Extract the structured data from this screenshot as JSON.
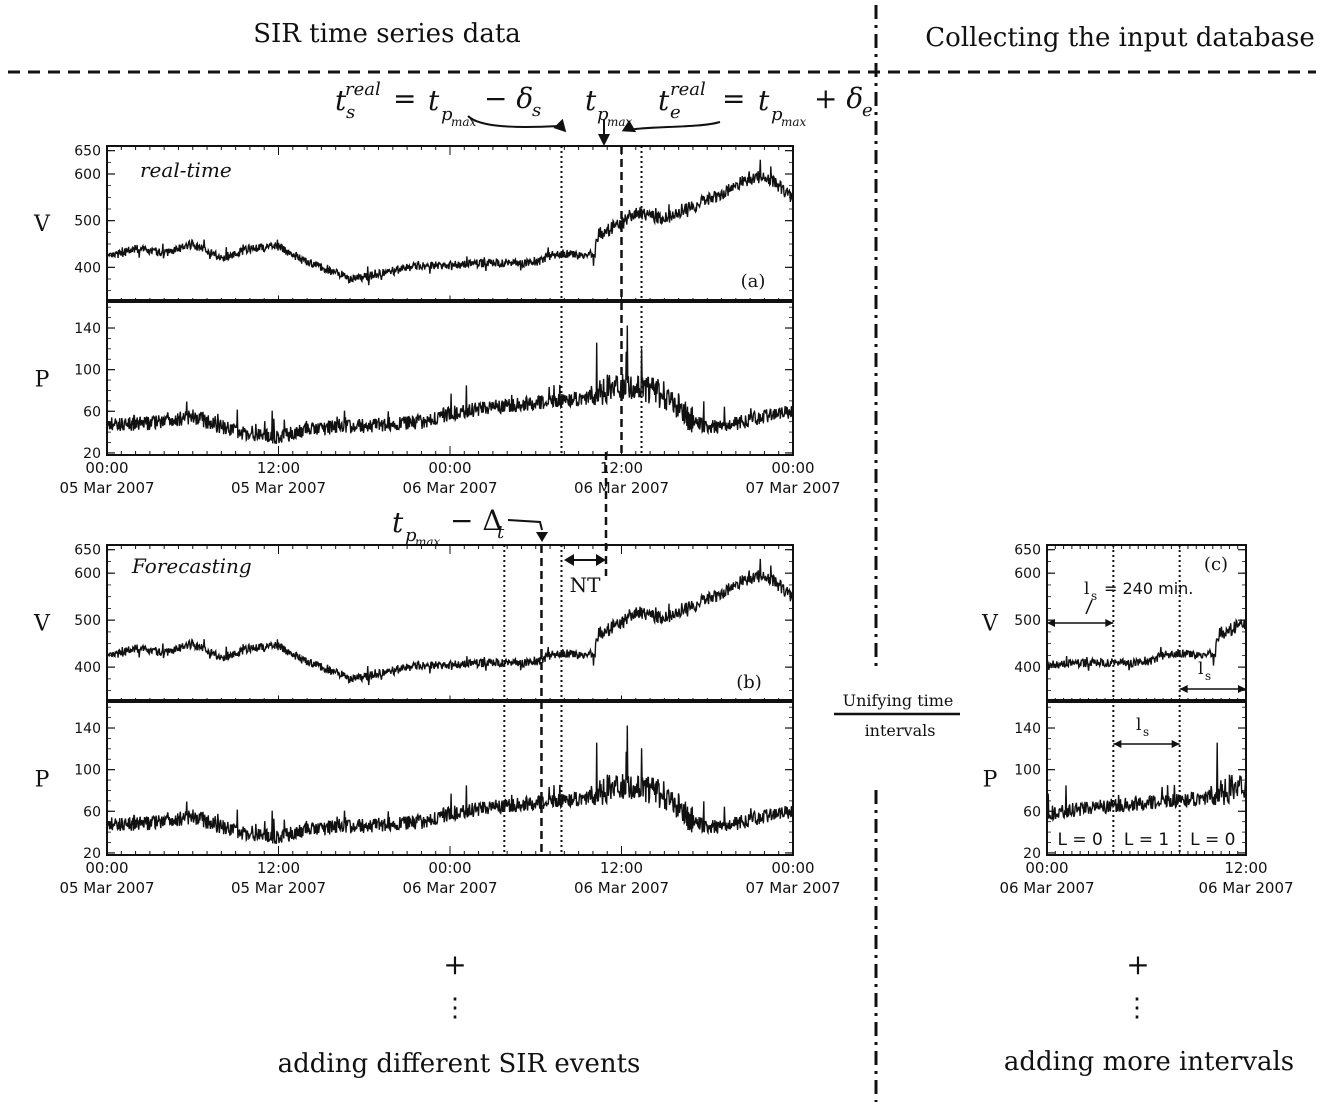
{
  "headers": {
    "left": "SIR time series data",
    "right": "Collecting the input database"
  },
  "formula": {
    "ts": "t",
    "ts_sup": "real",
    "ts_sub": "s",
    "eq1": "=",
    "tp": "t",
    "tp_sub": "p",
    "tp_subsub": "max",
    "minus_delta": "− δ",
    "delta_s_sub": "s",
    "tpmax": "t",
    "te": "t",
    "te_sup": "real",
    "te_sub": "e",
    "eq2": "=",
    "plus_delta": "+ δ",
    "delta_e_sub": "e"
  },
  "forecast_label": {
    "t": "t",
    "sub": "p",
    "subsub": "max",
    "rest": "− Δ",
    "rest_sub": "t"
  },
  "chart_data": [
    {
      "id": "a",
      "type": "line",
      "panel_tag": "(a)",
      "mode_label": "real-time",
      "series": [
        {
          "name": "V",
          "ylim": [
            330,
            660
          ],
          "yticks": [
            400,
            500,
            600,
            650
          ]
        },
        {
          "name": "P",
          "ylim": [
            18,
            165
          ],
          "yticks": [
            20,
            60,
            100,
            140
          ]
        }
      ],
      "xticks": [
        {
          "time": "00:00",
          "date": "05 Mar 2007"
        },
        {
          "time": "12:00",
          "date": "05 Mar 2007"
        },
        {
          "time": "00:00",
          "date": "06 Mar 2007"
        },
        {
          "time": "12:00",
          "date": "06 Mar 2007"
        },
        {
          "time": "00:00",
          "date": "07 Mar 2007"
        }
      ],
      "x_hours": [
        0,
        48
      ],
      "V_anchors": [
        [
          0,
          420
        ],
        [
          2,
          440
        ],
        [
          4,
          430
        ],
        [
          6,
          450
        ],
        [
          8,
          420
        ],
        [
          10,
          440
        ],
        [
          12,
          445
        ],
        [
          14,
          410
        ],
        [
          16,
          390
        ],
        [
          17,
          375
        ],
        [
          19,
          385
        ],
        [
          21,
          400
        ],
        [
          24,
          405
        ],
        [
          27,
          410
        ],
        [
          30,
          410
        ],
        [
          31,
          425
        ],
        [
          32,
          430
        ],
        [
          33,
          425
        ],
        [
          34.1,
          430
        ],
        [
          34.4,
          470
        ],
        [
          35,
          480
        ],
        [
          36,
          495
        ],
        [
          37,
          520
        ],
        [
          38,
          510
        ],
        [
          39,
          505
        ],
        [
          40,
          515
        ],
        [
          41,
          530
        ],
        [
          42,
          545
        ],
        [
          43,
          555
        ],
        [
          44,
          575
        ],
        [
          45,
          590
        ],
        [
          46,
          595
        ],
        [
          47,
          575
        ],
        [
          48,
          545
        ]
      ],
      "P_anchors": [
        [
          0,
          48
        ],
        [
          2,
          48
        ],
        [
          4,
          50
        ],
        [
          6,
          55
        ],
        [
          8,
          45
        ],
        [
          10,
          38
        ],
        [
          12,
          35
        ],
        [
          14,
          42
        ],
        [
          16,
          45
        ],
        [
          18,
          46
        ],
        [
          20,
          48
        ],
        [
          22,
          50
        ],
        [
          24,
          58
        ],
        [
          26,
          62
        ],
        [
          28,
          66
        ],
        [
          30,
          68
        ],
        [
          32,
          70
        ],
        [
          34,
          74
        ],
        [
          35,
          82
        ],
        [
          36,
          85
        ],
        [
          37,
          84
        ],
        [
          38,
          80
        ],
        [
          39,
          75
        ],
        [
          40,
          65
        ],
        [
          41,
          50
        ],
        [
          42,
          45
        ],
        [
          43,
          45
        ],
        [
          44,
          48
        ],
        [
          45,
          52
        ],
        [
          46,
          55
        ],
        [
          47,
          57
        ],
        [
          48,
          60
        ]
      ]
    },
    {
      "id": "b",
      "type": "line",
      "panel_tag": "(b)",
      "mode_label": "Forecasting",
      "series": [
        {
          "name": "V",
          "ylim": [
            330,
            660
          ],
          "yticks": [
            400,
            500,
            600,
            650
          ]
        },
        {
          "name": "P",
          "ylim": [
            18,
            165
          ],
          "yticks": [
            20,
            60,
            100,
            140
          ]
        }
      ],
      "xticks": [
        {
          "time": "00:00",
          "date": "05 Mar 2007"
        },
        {
          "time": "12:00",
          "date": "05 Mar 2007"
        },
        {
          "time": "00:00",
          "date": "06 Mar 2007"
        },
        {
          "time": "12:00",
          "date": "06 Mar 2007"
        },
        {
          "time": "00:00",
          "date": "07 Mar 2007"
        }
      ],
      "x_hours": [
        0,
        48
      ],
      "nt_label": "NT"
    },
    {
      "id": "c",
      "type": "line",
      "panel_tag": "(c)",
      "series": [
        {
          "name": "V",
          "ylim": [
            330,
            660
          ],
          "yticks": [
            400,
            500,
            600,
            650
          ]
        },
        {
          "name": "P",
          "ylim": [
            18,
            165
          ],
          "yticks": [
            20,
            60,
            100,
            140
          ]
        }
      ],
      "xticks": [
        {
          "time": "00:00",
          "date": "06 Mar 2007"
        },
        {
          "time": "12:00",
          "date": "06 Mar 2007"
        }
      ],
      "x_hours": [
        24,
        36
      ],
      "window_note": "l",
      "window_note_sub": "s",
      "window_note_rest": "= 240 min.",
      "ls": "l",
      "ls_sub": "s",
      "labels": [
        "L = 0",
        "L = 1",
        "L = 0"
      ]
    }
  ],
  "unify": {
    "line1": "Unifying time",
    "line2": "intervals"
  },
  "footer": {
    "plus": "+",
    "dots": "⋮",
    "left": "adding different SIR events",
    "right": "adding more intervals"
  }
}
